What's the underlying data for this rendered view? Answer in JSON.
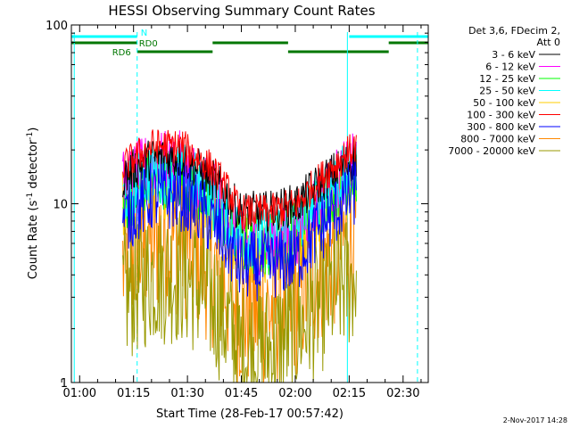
{
  "chart_data": {
    "type": "line",
    "title": "HESSI Observing Summary Count Rates",
    "xlabel": "Start Time (28-Feb-17 00:57:42)",
    "ylabel": "Count Rate (s⁻¹ detector⁻¹)",
    "ylabel_main": "Count Rate (s",
    "ylabel_sup1": "-1",
    "ylabel_mid": " detector",
    "ylabel_sup2": "-1",
    "ylabel_end": ")",
    "yscale": "log",
    "ylim": [
      1,
      100
    ],
    "xlim": [
      "00:57:42",
      "02:37:00"
    ],
    "x_ticks": [
      "01:00",
      "01:15",
      "01:30",
      "01:45",
      "02:00",
      "02:15",
      "02:30"
    ],
    "y_ticks": [
      "1",
      "10",
      "100"
    ],
    "legend_placement": "right",
    "legend_header": [
      "Det 3,6, FDecim 2,",
      "Att 0"
    ],
    "footer_date": "2-Nov-2017 14:28",
    "flags": [
      {
        "label": "N",
        "color": "#00ffff",
        "level": "top",
        "intervals": [
          [
            "00:57:42",
            "01:16:00"
          ],
          [
            "02:15:00",
            "02:37:00"
          ]
        ]
      },
      {
        "label": "RD0",
        "color": "#007700",
        "level": "middle",
        "intervals": [
          [
            "00:57:42",
            "01:16:00"
          ],
          [
            "01:37:00",
            "01:58:00"
          ],
          [
            "02:26:00",
            "02:37:00"
          ]
        ]
      },
      {
        "label": "RD6",
        "color": "#007700",
        "level": "bottom",
        "intervals": [
          [
            "01:16:00",
            "01:37:00"
          ],
          [
            "01:58:00",
            "02:26:00"
          ]
        ]
      }
    ],
    "vertical_lines": [
      {
        "time": "00:58:30",
        "style": "solid",
        "color": "#00ffff"
      },
      {
        "time": "01:16:00",
        "style": "dashed",
        "color": "#00ffff"
      },
      {
        "time": "02:14:30",
        "style": "solid",
        "color": "#00ffff"
      },
      {
        "time": "02:34:00",
        "style": "dashed",
        "color": "#00ffff"
      }
    ],
    "data_range": [
      "01:12:00",
      "02:17:00"
    ],
    "series": [
      {
        "name": "3 - 6 keV",
        "color": "#000000",
        "center": [
          14,
          18,
          18,
          14,
          9,
          9,
          10,
          14,
          18
        ],
        "jitter": 0.12
      },
      {
        "name": "6 - 12 keV",
        "color": "#ff00ff",
        "center": [
          13,
          17,
          17,
          12,
          6,
          6,
          7,
          12,
          17
        ],
        "jitter": 0.18
      },
      {
        "name": "12 - 25 keV",
        "color": "#00ff00",
        "center": [
          10,
          14,
          14,
          10,
          6,
          6,
          7,
          11,
          15
        ],
        "jitter": 0.18
      },
      {
        "name": "25 - 50 keV",
        "color": "#00ffff",
        "center": [
          11,
          15,
          15,
          11,
          6.5,
          6.5,
          7.5,
          12,
          16
        ],
        "jitter": 0.18
      },
      {
        "name": "50 - 100 keV",
        "color": "#ffcc00",
        "center": [
          10,
          13,
          13,
          10,
          5.5,
          5.5,
          6.5,
          10,
          14
        ],
        "jitter": 0.2
      },
      {
        "name": "100 - 300 keV",
        "color": "#ff0000",
        "center": [
          16,
          21,
          21,
          16,
          9,
          9,
          10,
          15,
          21
        ],
        "jitter": 0.1
      },
      {
        "name": "300 - 800 keV",
        "color": "#0000ff",
        "center": [
          8,
          11,
          11,
          8,
          4.5,
          4.5,
          5,
          8,
          12
        ],
        "jitter": 0.2
      },
      {
        "name": "800 - 7000 keV",
        "color": "#ff8800",
        "center": [
          4.5,
          6.5,
          6.5,
          4.5,
          2.5,
          2.5,
          3,
          5,
          7
        ],
        "jitter": 0.45
      },
      {
        "name": "7000 - 20000 keV",
        "color": "#999900",
        "center": [
          3,
          4,
          4,
          3,
          1.5,
          1.5,
          2,
          3,
          4
        ],
        "jitter": 0.4
      }
    ]
  }
}
